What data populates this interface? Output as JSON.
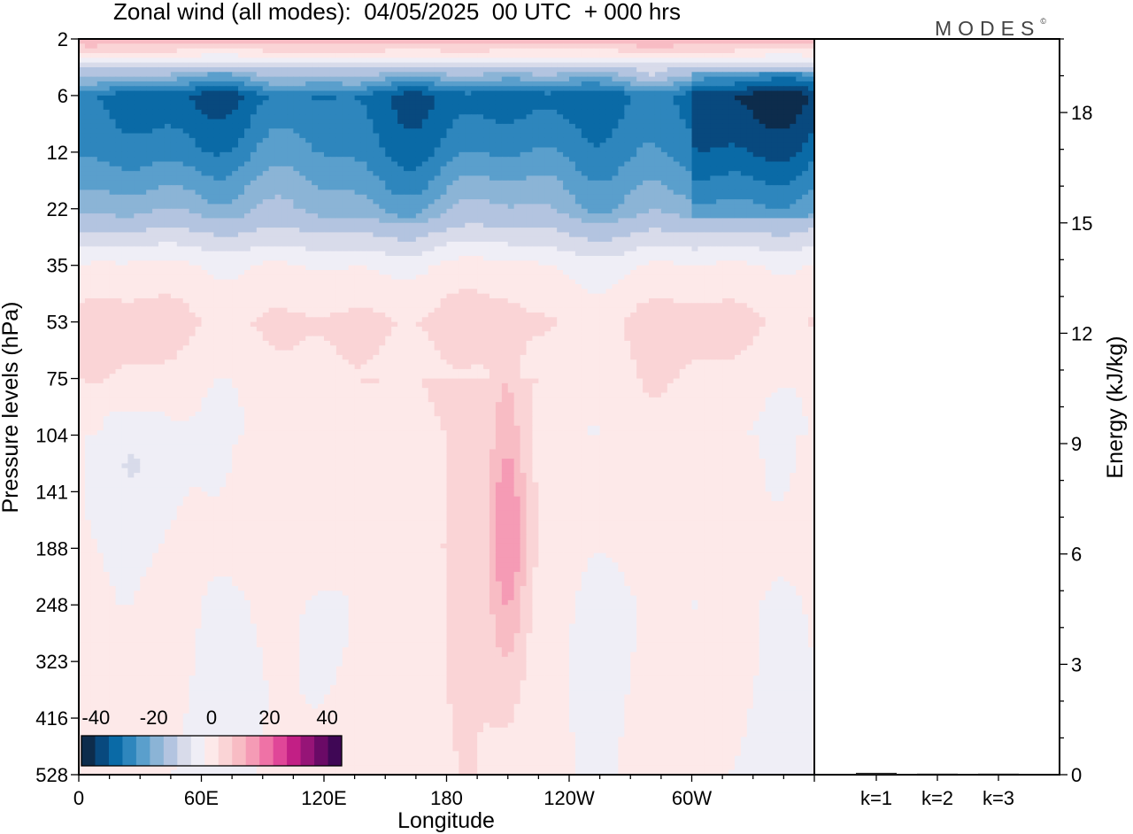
{
  "title": "Zonal wind (all modes):  04/05/2025  00 UTC  + 000 hrs",
  "logo": "MODES",
  "logo_mark": "©",
  "chart_data": [
    {
      "type": "heatmap",
      "variable": "Zonal wind (all modes)",
      "xlabel": "Longitude",
      "ylabel": "Pressure levels (hPa)",
      "x_tick_labels": [
        "0",
        "60E",
        "120E",
        "180",
        "120W",
        "60W"
      ],
      "y_tick_labels": [
        "2",
        "6",
        "12",
        "22",
        "35",
        "53",
        "75",
        "104",
        "141",
        "188",
        "248",
        "323",
        "416",
        "528"
      ],
      "x_range_deg": [
        0,
        360
      ],
      "levels_hPa": [
        2,
        6,
        12,
        22,
        35,
        53,
        75,
        104,
        141,
        188,
        248,
        323,
        416,
        528
      ],
      "colorbar": {
        "tick_labels": [
          "-40",
          "-20",
          "0",
          "20",
          "40"
        ],
        "min": -45,
        "max": 45,
        "step": 5,
        "colors": [
          "#0d2c4c",
          "#08497e",
          "#0a6aa6",
          "#2e86bd",
          "#5a9fcc",
          "#8bb4d6",
          "#b3c4e0",
          "#d8dbea",
          "#efeef6",
          "#fde9e9",
          "#fad4d6",
          "#f8bcc4",
          "#f59bb5",
          "#ef72a6",
          "#e04698",
          "#c21f85",
          "#961477",
          "#6a0a66",
          "#3f0755"
        ]
      },
      "representative_profile": [
        {
          "level_hPa": 2,
          "u": 15
        },
        {
          "level_hPa": 6,
          "u": -33
        },
        {
          "level_hPa": 12,
          "u": -27
        },
        {
          "level_hPa": 22,
          "u": -17
        },
        {
          "level_hPa": 35,
          "u": 0
        },
        {
          "level_hPa": 53,
          "u": 6
        },
        {
          "level_hPa": 75,
          "u": 3
        },
        {
          "level_hPa": 104,
          "u": 1
        },
        {
          "level_hPa": 141,
          "u": 1
        },
        {
          "level_hPa": 188,
          "u": 1
        },
        {
          "level_hPa": 248,
          "u": 0
        },
        {
          "level_hPa": 323,
          "u": 0
        },
        {
          "level_hPa": 416,
          "u": 0
        },
        {
          "level_hPa": 528,
          "u": 0
        }
      ],
      "features": [
        {
          "name": "stratospheric easterly jet",
          "lon_range_deg": [
            0,
            360
          ],
          "level_range_hPa": [
            5,
            20
          ],
          "u_min": -40
        },
        {
          "name": "upper westerlies",
          "lon_range_deg": [
            0,
            360
          ],
          "level_range_hPa": [
            2,
            3
          ],
          "u_max": 20
        },
        {
          "name": "westerly maximum near 150W",
          "lon_deg": 210,
          "level_range_hPa": [
            120,
            250
          ],
          "u_max": 17
        }
      ]
    },
    {
      "type": "bar",
      "categories": [
        "k=1",
        "k=2",
        "k=3"
      ],
      "values": [
        0.05,
        0.02,
        0.02
      ],
      "ylabel": "Energy (kJ/kg)",
      "ylim": [
        0,
        20
      ],
      "y_tick_labels": [
        "0",
        "3",
        "6",
        "9",
        "12",
        "15",
        "18"
      ]
    }
  ]
}
